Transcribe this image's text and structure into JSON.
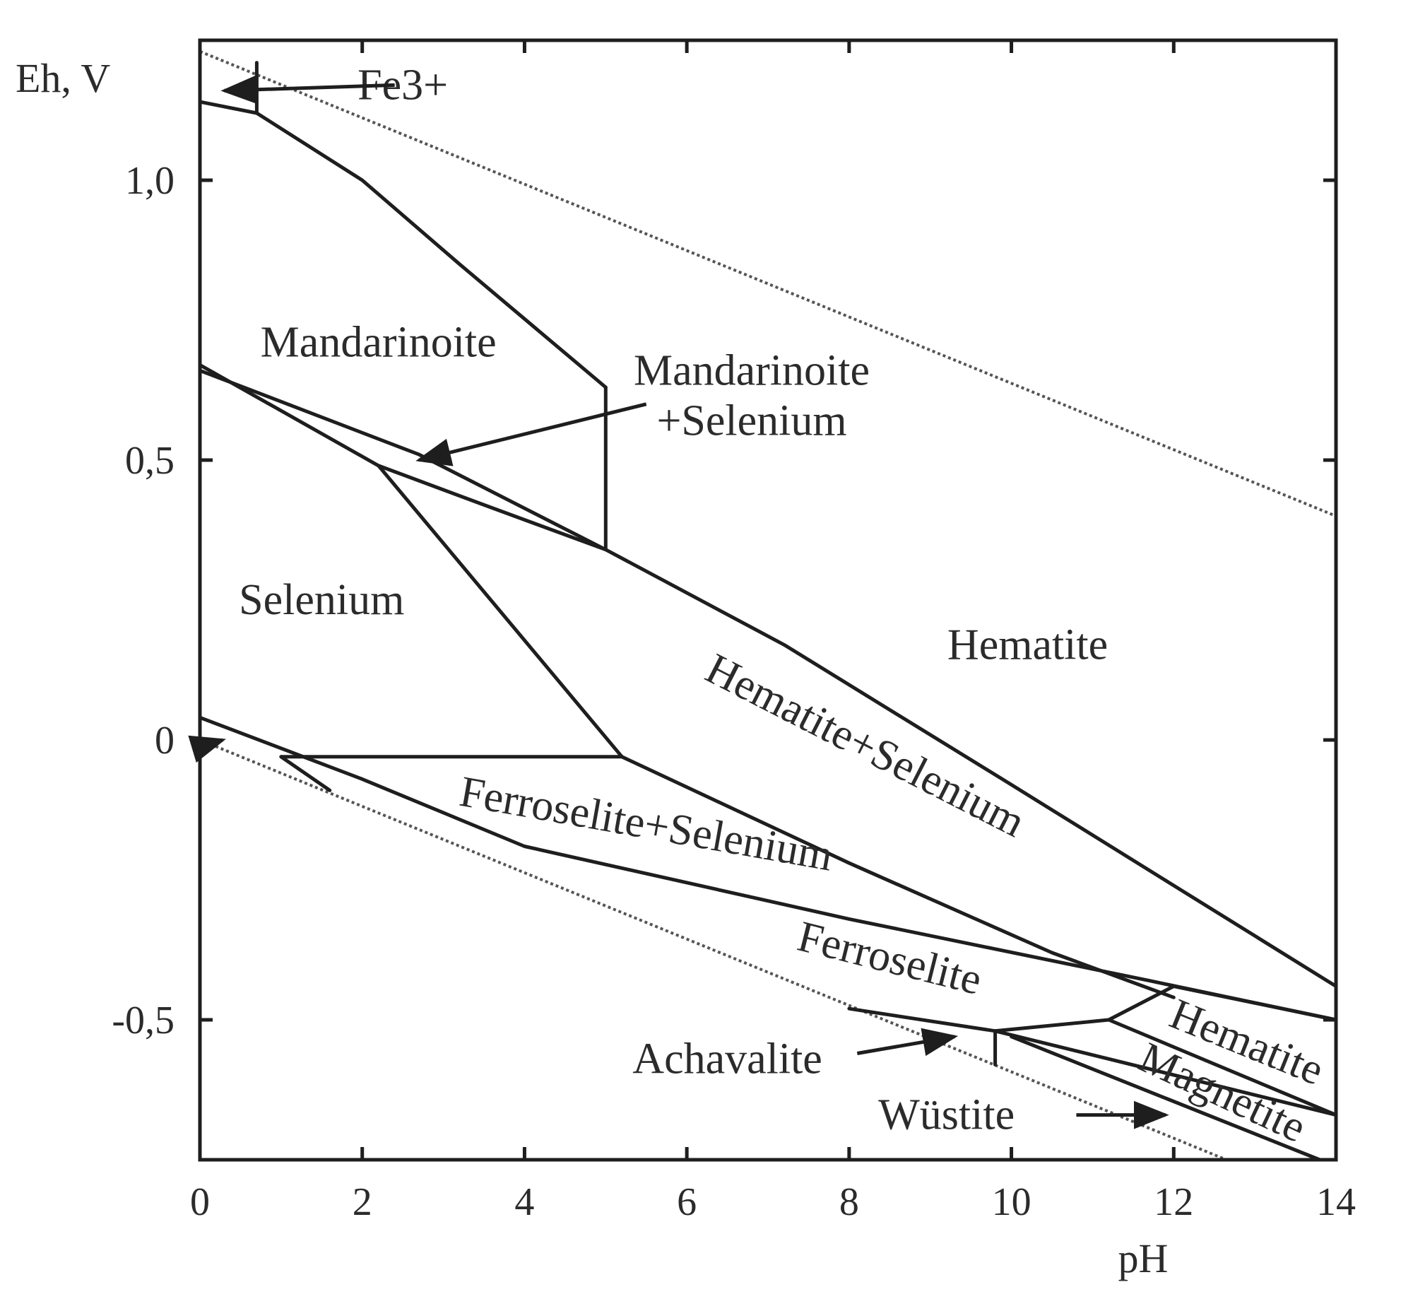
{
  "chart_data": {
    "type": "line",
    "title": "",
    "xlabel": "pH",
    "ylabel": "Eh, V",
    "xlim": [
      0,
      14
    ],
    "ylim": [
      -0.75,
      1.25
    ],
    "x_ticks": [
      0,
      2,
      4,
      6,
      8,
      10,
      12,
      14
    ],
    "x_tick_labels": [
      "0",
      "2",
      "4",
      "6",
      "8",
      "10",
      "12",
      "14"
    ],
    "y_ticks": [
      1.0,
      0.5,
      0,
      -0.5
    ],
    "y_tick_labels": [
      "1,0",
      "0,5",
      "0",
      "-0,5"
    ],
    "grid": false,
    "water_stability_lines": [
      {
        "x": [
          0,
          14
        ],
        "y": [
          1.23,
          0.4
        ]
      },
      {
        "x": [
          0,
          14
        ],
        "y": [
          0.0,
          -0.83
        ]
      }
    ],
    "boundaries": [
      {
        "x": [
          0,
          0.7,
          2,
          2.4,
          3.2,
          5.0
        ],
        "y": [
          1.14,
          1.12,
          1.0,
          0.95,
          0.85,
          0.63
        ]
      },
      {
        "x": [
          0.7,
          0.7
        ],
        "y": [
          1.12,
          1.21
        ]
      },
      {
        "x": [
          5.0,
          5.0
        ],
        "y": [
          0.63,
          0.34
        ]
      },
      {
        "x": [
          0,
          2.2,
          3.5,
          5.0,
          7.2,
          10.0,
          14.0
        ],
        "y": [
          0.67,
          0.49,
          0.42,
          0.34,
          0.17,
          -0.08,
          -0.44
        ]
      },
      {
        "x": [
          0,
          2.7,
          5.0
        ],
        "y": [
          0.66,
          0.51,
          0.34
        ]
      },
      {
        "x": [
          2.2,
          5.2
        ],
        "y": [
          0.49,
          -0.03
        ]
      },
      {
        "x": [
          1.0,
          5.2
        ],
        "y": [
          -0.03,
          -0.03
        ]
      },
      {
        "x": [
          5.2,
          8.0,
          10.5,
          12.0
        ],
        "y": [
          -0.03,
          -0.22,
          -0.38,
          -0.46
        ]
      },
      {
        "x": [
          0,
          2.0,
          4.0,
          8.0,
          11.7,
          14.0
        ],
        "y": [
          0.04,
          -0.07,
          -0.19,
          -0.32,
          -0.43,
          -0.5
        ]
      },
      {
        "x": [
          1.0,
          1.6
        ],
        "y": [
          -0.03,
          -0.09
        ]
      },
      {
        "x": [
          12.0,
          14.0
        ],
        "y": [
          -0.44,
          -0.5
        ]
      },
      {
        "x": [
          9.8,
          11.2,
          12.0
        ],
        "y": [
          -0.52,
          -0.5,
          -0.44
        ]
      },
      {
        "x": [
          9.8,
          9.8
        ],
        "y": [
          -0.52,
          -0.58
        ]
      },
      {
        "x": [
          8.0,
          9.8,
          14.0
        ],
        "y": [
          -0.48,
          -0.52,
          -0.67
        ]
      },
      {
        "x": [
          11.2,
          14.0
        ],
        "y": [
          -0.5,
          -0.67
        ]
      },
      {
        "x": [
          10.0,
          13.8
        ],
        "y": [
          -0.53,
          -0.75
        ]
      }
    ],
    "annotations": [
      {
        "text": "Fe3+",
        "x": 2.5,
        "y": 1.17
      },
      {
        "text": "Mandarinoite",
        "x": 2.2,
        "y": 0.71
      },
      {
        "text": "Mandarinoite",
        "x": 6.8,
        "y": 0.66
      },
      {
        "text": "+Selenium",
        "x": 6.8,
        "y": 0.57
      },
      {
        "text": "Selenium",
        "x": 1.5,
        "y": 0.25
      },
      {
        "text": "Hematite",
        "x": 10.2,
        "y": 0.17
      },
      {
        "text": "Hematite+Selenium",
        "x": 8.2,
        "y": -0.01
      },
      {
        "text": "Ferroselite+Selenium",
        "x": 5.5,
        "y": -0.15
      },
      {
        "text": "Ferroselite",
        "x": 8.5,
        "y": -0.39
      },
      {
        "text": "Achavalite",
        "x": 6.5,
        "y": -0.57
      },
      {
        "text": "Wüstite",
        "x": 9.2,
        "y": -0.67
      },
      {
        "text": "Hematite",
        "x": 12.9,
        "y": -0.54
      },
      {
        "text": "Magnetite",
        "x": 12.6,
        "y": -0.63
      }
    ]
  }
}
